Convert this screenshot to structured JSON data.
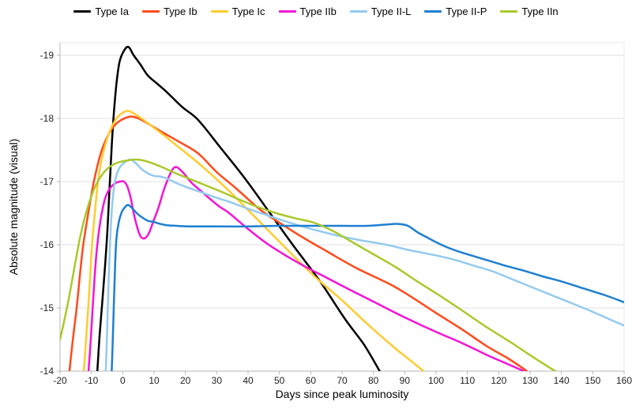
{
  "legend": {
    "items": [
      {
        "label": "Type Ia",
        "color": "#000000"
      },
      {
        "label": "Type Ib",
        "color": "#FF4A1C"
      },
      {
        "label": "Type Ic",
        "color": "#FFCB2F"
      },
      {
        "label": "Type IIb",
        "color": "#F414D4"
      },
      {
        "label": "Type II-L",
        "color": "#94CAEF"
      },
      {
        "label": "Type II-P",
        "color": "#1D7FD1"
      },
      {
        "label": "Type IIn",
        "color": "#A9C92B"
      }
    ]
  },
  "x_axis": {
    "title": "Days since peak luminosity",
    "ticks": [
      -20,
      -10,
      0,
      10,
      20,
      30,
      40,
      50,
      60,
      70,
      80,
      90,
      100,
      110,
      120,
      130,
      140,
      150,
      160
    ],
    "min": -20,
    "max": 160
  },
  "y_axis": {
    "title": "Absolute magnitude (visual)",
    "ticks": [
      -19,
      -18,
      -17,
      -16,
      -15,
      -14
    ],
    "min_display": -19.2,
    "max_display": -14
  },
  "colors": {
    "gridline": "#e2e2e2",
    "axis_line": "#b7b7b7",
    "frame": "#e8e8e8",
    "background": "#ffffff"
  },
  "chart_data": {
    "type": "line",
    "title": "",
    "xlabel": "Days since peak luminosity",
    "ylabel": "Absolute magnitude (visual)",
    "xlim": [
      -20,
      160
    ],
    "ylim_display": [
      -19.2,
      -14
    ],
    "y_inverted": true,
    "grid": "horizontal-only",
    "legend_position": "top-center",
    "series": [
      {
        "name": "Type Ia",
        "color": "#000000",
        "points": [
          [
            -8.1,
            -14
          ],
          [
            -7.4,
            -14.55
          ],
          [
            -6.6,
            -15.05
          ],
          [
            -5.8,
            -15.55
          ],
          [
            -5.1,
            -16.05
          ],
          [
            -4.5,
            -16.6
          ],
          [
            -4,
            -17.1
          ],
          [
            -3.4,
            -17.65
          ],
          [
            -2.8,
            -18.1
          ],
          [
            -2,
            -18.55
          ],
          [
            -1,
            -18.9
          ],
          [
            0.5,
            -19.08
          ],
          [
            1.9,
            -19.13
          ],
          [
            3.5,
            -19.0
          ],
          [
            5.7,
            -18.85
          ],
          [
            8,
            -18.68
          ],
          [
            11,
            -18.55
          ],
          [
            14,
            -18.42
          ],
          [
            19,
            -18.18
          ],
          [
            24,
            -17.98
          ],
          [
            31,
            -17.55
          ],
          [
            39,
            -17.05
          ],
          [
            47,
            -16.5
          ],
          [
            55,
            -15.95
          ],
          [
            63,
            -15.42
          ],
          [
            71,
            -14.82
          ],
          [
            77,
            -14.42
          ],
          [
            82,
            -14
          ]
        ]
      },
      {
        "name": "Type Ib",
        "color": "#FF4A1C",
        "points": [
          [
            -17,
            -14
          ],
          [
            -15.8,
            -14.55
          ],
          [
            -14.7,
            -15
          ],
          [
            -13.6,
            -15.55
          ],
          [
            -12.6,
            -16
          ],
          [
            -11,
            -16.5
          ],
          [
            -9.2,
            -17
          ],
          [
            -7,
            -17.45
          ],
          [
            -4.5,
            -17.75
          ],
          [
            -2,
            -17.92
          ],
          [
            0.5,
            -18
          ],
          [
            2.8,
            -18.03
          ],
          [
            5,
            -18
          ],
          [
            8,
            -17.92
          ],
          [
            12,
            -17.8
          ],
          [
            18,
            -17.63
          ],
          [
            24,
            -17.45
          ],
          [
            30,
            -17.15
          ],
          [
            36,
            -16.9
          ],
          [
            44,
            -16.55
          ],
          [
            50,
            -16.35
          ],
          [
            57,
            -16.13
          ],
          [
            65,
            -15.9
          ],
          [
            75,
            -15.62
          ],
          [
            87,
            -15.33
          ],
          [
            100,
            -14.92
          ],
          [
            108,
            -14.67
          ],
          [
            116,
            -14.4
          ],
          [
            123,
            -14.2
          ],
          [
            129,
            -14
          ]
        ]
      },
      {
        "name": "Type Ic",
        "color": "#FFCB2F",
        "points": [
          [
            -12.4,
            -14
          ],
          [
            -11.7,
            -14.5
          ],
          [
            -11,
            -15
          ],
          [
            -10.4,
            -15.5
          ],
          [
            -9.8,
            -16
          ],
          [
            -8.8,
            -16.55
          ],
          [
            -7.9,
            -17
          ],
          [
            -6.5,
            -17.4
          ],
          [
            -4.5,
            -17.75
          ],
          [
            -2,
            -18
          ],
          [
            0,
            -18.09
          ],
          [
            1.6,
            -18.12
          ],
          [
            3.5,
            -18.08
          ],
          [
            6,
            -18
          ],
          [
            10,
            -17.85
          ],
          [
            14,
            -17.7
          ],
          [
            19,
            -17.5
          ],
          [
            24,
            -17.3
          ],
          [
            29,
            -17.08
          ],
          [
            34,
            -16.85
          ],
          [
            40,
            -16.55
          ],
          [
            46,
            -16.25
          ],
          [
            52,
            -15.95
          ],
          [
            57,
            -15.7
          ],
          [
            63,
            -15.42
          ],
          [
            70,
            -15.12
          ],
          [
            78,
            -14.75
          ],
          [
            86,
            -14.4
          ],
          [
            91,
            -14.2
          ],
          [
            96,
            -14
          ]
        ]
      },
      {
        "name": "Type IIb",
        "color": "#F414D4",
        "points": [
          [
            -10.9,
            -14
          ],
          [
            -10.2,
            -14.5
          ],
          [
            -9.6,
            -15
          ],
          [
            -9,
            -15.45
          ],
          [
            -8.4,
            -15.85
          ],
          [
            -7.5,
            -16.25
          ],
          [
            -6.5,
            -16.55
          ],
          [
            -5.5,
            -16.75
          ],
          [
            -4,
            -16.9
          ],
          [
            -2.5,
            -16.97
          ],
          [
            -1,
            -17
          ],
          [
            0.4,
            -17
          ],
          [
            1.5,
            -16.92
          ],
          [
            2.5,
            -16.75
          ],
          [
            3.5,
            -16.5
          ],
          [
            4.5,
            -16.3
          ],
          [
            5.5,
            -16.15
          ],
          [
            6.5,
            -16.1
          ],
          [
            7.5,
            -16.12
          ],
          [
            8.5,
            -16.2
          ],
          [
            10,
            -16.4
          ],
          [
            11.5,
            -16.6
          ],
          [
            13,
            -16.85
          ],
          [
            14.5,
            -17.05
          ],
          [
            16,
            -17.2
          ],
          [
            17.2,
            -17.23
          ],
          [
            18.5,
            -17.18
          ],
          [
            20,
            -17.1
          ],
          [
            22,
            -16.98
          ],
          [
            25,
            -16.85
          ],
          [
            28,
            -16.72
          ],
          [
            31,
            -16.6
          ],
          [
            34,
            -16.5
          ],
          [
            40,
            -16.25
          ],
          [
            46,
            -16.02
          ],
          [
            52,
            -15.83
          ],
          [
            58,
            -15.66
          ],
          [
            65,
            -15.48
          ],
          [
            72,
            -15.3
          ],
          [
            80,
            -15.1
          ],
          [
            90,
            -14.85
          ],
          [
            100,
            -14.62
          ],
          [
            108,
            -14.45
          ],
          [
            116,
            -14.26
          ],
          [
            122,
            -14.13
          ],
          [
            128,
            -14
          ]
        ]
      },
      {
        "name": "Type II-L",
        "color": "#94CAEF",
        "points": [
          [
            -5.4,
            -14
          ],
          [
            -5,
            -14.6
          ],
          [
            -4.7,
            -15.1
          ],
          [
            -4.3,
            -15.7
          ],
          [
            -3.9,
            -16.2
          ],
          [
            -3.4,
            -16.6
          ],
          [
            -2.8,
            -16.9
          ],
          [
            -2,
            -17.1
          ],
          [
            -1,
            -17.22
          ],
          [
            0.5,
            -17.3
          ],
          [
            2.4,
            -17.35
          ],
          [
            4,
            -17.3
          ],
          [
            6,
            -17.2
          ],
          [
            8,
            -17.13
          ],
          [
            10,
            -17.09
          ],
          [
            12,
            -17.08
          ],
          [
            14,
            -17.05
          ],
          [
            17,
            -16.98
          ],
          [
            20,
            -16.92
          ],
          [
            24,
            -16.85
          ],
          [
            29,
            -16.76
          ],
          [
            34,
            -16.68
          ],
          [
            40,
            -16.57
          ],
          [
            46,
            -16.47
          ],
          [
            52,
            -16.37
          ],
          [
            58,
            -16.28
          ],
          [
            64,
            -16.2
          ],
          [
            70,
            -16.13
          ],
          [
            76,
            -16.07
          ],
          [
            82,
            -16.02
          ],
          [
            86,
            -15.98
          ],
          [
            91,
            -15.92
          ],
          [
            96,
            -15.87
          ],
          [
            101,
            -15.82
          ],
          [
            106,
            -15.76
          ],
          [
            112,
            -15.67
          ],
          [
            118,
            -15.58
          ],
          [
            125,
            -15.44
          ],
          [
            132,
            -15.3
          ],
          [
            140,
            -15.14
          ],
          [
            148,
            -14.98
          ],
          [
            154,
            -14.85
          ],
          [
            160,
            -14.72
          ]
        ]
      },
      {
        "name": "Type II-P",
        "color": "#1D7FD1",
        "points": [
          [
            -3.5,
            -14
          ],
          [
            -3.1,
            -14.6
          ],
          [
            -2.8,
            -15.1
          ],
          [
            -2.4,
            -15.7
          ],
          [
            -2,
            -16.1
          ],
          [
            -1.3,
            -16.35
          ],
          [
            -0.3,
            -16.52
          ],
          [
            0.8,
            -16.6
          ],
          [
            1.8,
            -16.63
          ],
          [
            3,
            -16.58
          ],
          [
            4.5,
            -16.5
          ],
          [
            6,
            -16.44
          ],
          [
            8,
            -16.38
          ],
          [
            10,
            -16.36
          ],
          [
            12,
            -16.33
          ],
          [
            14,
            -16.31
          ],
          [
            17,
            -16.3
          ],
          [
            22,
            -16.29
          ],
          [
            30,
            -16.29
          ],
          [
            40,
            -16.29
          ],
          [
            50,
            -16.3
          ],
          [
            60,
            -16.3
          ],
          [
            70,
            -16.3
          ],
          [
            78,
            -16.3
          ],
          [
            84,
            -16.32
          ],
          [
            88,
            -16.33
          ],
          [
            91,
            -16.3
          ],
          [
            94,
            -16.2
          ],
          [
            97,
            -16.12
          ],
          [
            100,
            -16.04
          ],
          [
            104,
            -15.95
          ],
          [
            108,
            -15.88
          ],
          [
            112,
            -15.82
          ],
          [
            116,
            -15.76
          ],
          [
            122,
            -15.67
          ],
          [
            128,
            -15.59
          ],
          [
            134,
            -15.5
          ],
          [
            140,
            -15.42
          ],
          [
            147,
            -15.31
          ],
          [
            154,
            -15.2
          ],
          [
            160,
            -15.09
          ]
        ]
      },
      {
        "name": "Type IIn",
        "color": "#A9C92B",
        "points": [
          [
            -20,
            -14.5
          ],
          [
            -19,
            -14.72
          ],
          [
            -18,
            -14.95
          ],
          [
            -17,
            -15.2
          ],
          [
            -16,
            -15.48
          ],
          [
            -15,
            -15.75
          ],
          [
            -14,
            -16.02
          ],
          [
            -13,
            -16.25
          ],
          [
            -12,
            -16.45
          ],
          [
            -11,
            -16.62
          ],
          [
            -10,
            -16.77
          ],
          [
            -8.5,
            -16.95
          ],
          [
            -7,
            -17.08
          ],
          [
            -5,
            -17.2
          ],
          [
            -3,
            -17.27
          ],
          [
            -1,
            -17.31
          ],
          [
            1,
            -17.33
          ],
          [
            4,
            -17.35
          ],
          [
            7,
            -17.33
          ],
          [
            10,
            -17.28
          ],
          [
            13,
            -17.22
          ],
          [
            17,
            -17.13
          ],
          [
            21,
            -17.05
          ],
          [
            26,
            -16.95
          ],
          [
            31,
            -16.85
          ],
          [
            37,
            -16.72
          ],
          [
            43,
            -16.6
          ],
          [
            49,
            -16.5
          ],
          [
            55,
            -16.42
          ],
          [
            61,
            -16.35
          ],
          [
            67,
            -16.22
          ],
          [
            73,
            -16.05
          ],
          [
            80,
            -15.85
          ],
          [
            87,
            -15.65
          ],
          [
            94,
            -15.42
          ],
          [
            101,
            -15.2
          ],
          [
            108,
            -14.97
          ],
          [
            116,
            -14.7
          ],
          [
            124,
            -14.45
          ],
          [
            131,
            -14.22
          ],
          [
            138,
            -14
          ]
        ]
      }
    ]
  }
}
